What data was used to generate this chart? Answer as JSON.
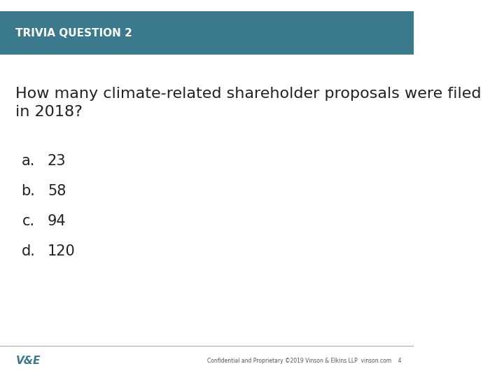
{
  "header_text": "TRIVIA QUESTION 2",
  "header_bg_color": "#3a7a8c",
  "header_text_color": "#ffffff",
  "question_text": "How many climate-related shareholder proposals were filed\nin 2018?",
  "choices": [
    {
      "letter": "a.",
      "answer": "23"
    },
    {
      "letter": "b.",
      "answer": "58"
    },
    {
      "letter": "c.",
      "answer": "94"
    },
    {
      "letter": "d.",
      "answer": "120"
    }
  ],
  "question_color": "#222222",
  "choice_color": "#222222",
  "background_color": "#ffffff",
  "footer_logo": "V&E",
  "footer_note": "Confidential and Proprietary ©2019 Vinson & Elkins LLP  vinson.com    4",
  "footer_line_color": "#aaaaaa",
  "footer_text_color": "#3a7a8c",
  "footer_note_color": "#555555"
}
